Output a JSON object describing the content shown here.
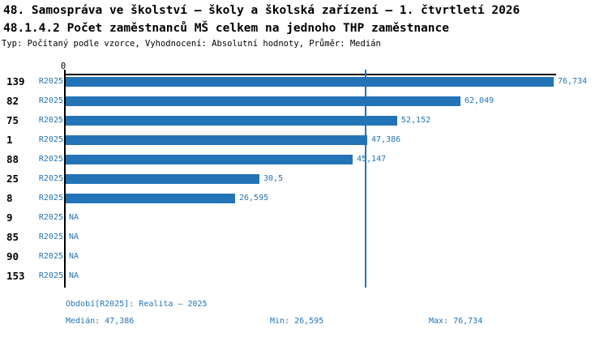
{
  "title_line1": "48. Samospráva ve školství – školy a školská zařízení – 1. čtvrtletí 2026",
  "title_line2": "48.1.4.2 Počet zaměstnanců MŠ celkem na jednoho THP zaměstnance",
  "subtitle": "Typ: Počítaný podle vzorce, Vyhodnocení: Absolutní hodnoty, Průměr: Medián",
  "chart_data": {
    "type": "bar",
    "orientation": "horizontal",
    "title": "48.1.4.2 Počet zaměstnanců MŠ celkem na jednoho THP zaměstnance",
    "series_name": "R2025",
    "axis_zero_label": "0",
    "xlim": [
      0,
      76.734
    ],
    "median": 47.386,
    "min": 26.595,
    "max": 76.734,
    "grid": false,
    "legend_position": "none",
    "rows": [
      {
        "category": "139",
        "period": "R2025",
        "value": 76.734,
        "value_label": "76,734"
      },
      {
        "category": "82",
        "period": "R2025",
        "value": 62.049,
        "value_label": "62,049"
      },
      {
        "category": "75",
        "period": "R2025",
        "value": 52.152,
        "value_label": "52,152"
      },
      {
        "category": "1",
        "period": "R2025",
        "value": 47.386,
        "value_label": "47,386"
      },
      {
        "category": "88",
        "period": "R2025",
        "value": 45.147,
        "value_label": "45,147"
      },
      {
        "category": "25",
        "period": "R2025",
        "value": 30.5,
        "value_label": "30,5"
      },
      {
        "category": "8",
        "period": "R2025",
        "value": 26.595,
        "value_label": "26,595"
      },
      {
        "category": "9",
        "period": "R2025",
        "value": null,
        "value_label": "NA"
      },
      {
        "category": "85",
        "period": "R2025",
        "value": null,
        "value_label": "NA"
      },
      {
        "category": "90",
        "period": "R2025",
        "value": null,
        "value_label": "NA"
      },
      {
        "category": "153",
        "period": "R2025",
        "value": null,
        "value_label": "NA"
      }
    ],
    "colors": {
      "bar": "#2374B6",
      "blue_text": "#2374B6",
      "axis": "#000000"
    }
  },
  "footer": {
    "period_info": "Období[R2025]: Realita – 2025",
    "median": "Medián: 47,386",
    "min": "Min: 26,595",
    "max": "Max: 76,734"
  }
}
